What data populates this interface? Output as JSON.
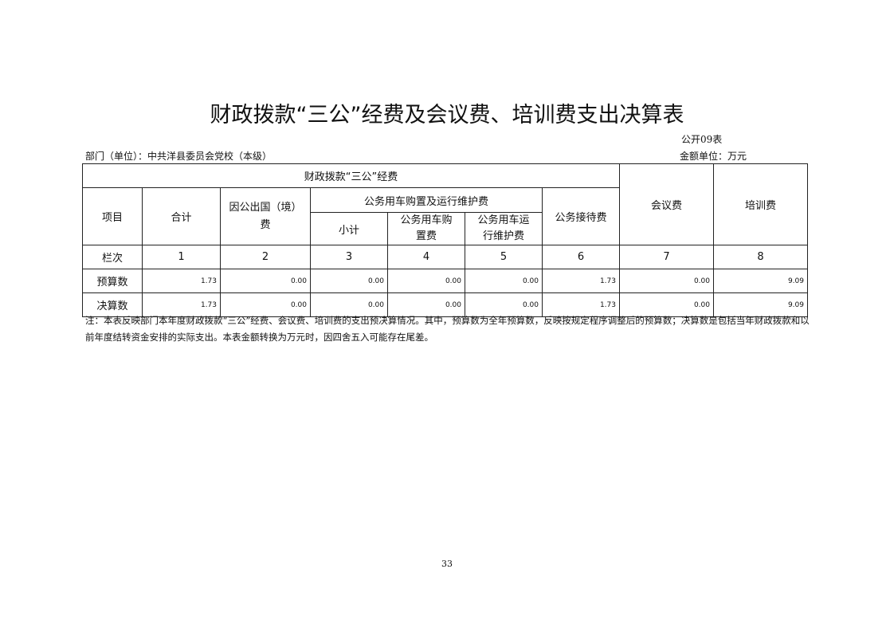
{
  "title": "财政拨款“三公”经费及会议费、培训费支出决算表",
  "form_code": "公开09表",
  "department": "部门（单位）：中共洋县委员会党校（本级）",
  "unit": "金额单位：万元",
  "headers": {
    "group": "财政拨款“三公”经费",
    "item": "项目",
    "total": "合计",
    "abroad": "因公出国（境）费",
    "car_group": "公务用车购置及运行维护费",
    "car_subtotal": "小计",
    "car_purchase": "公务用车购置费",
    "car_operation": "公务用车运行维护费",
    "reception": "公务接待费",
    "meeting": "会议费",
    "training": "培训费"
  },
  "rows": [
    {
      "label": "栏次",
      "values": [
        "1",
        "2",
        "3",
        "4",
        "5",
        "6",
        "7",
        "8"
      ]
    },
    {
      "label": "预算数",
      "values": [
        "1.73",
        "0.00",
        "0.00",
        "0.00",
        "0.00",
        "1.73",
        "0.00",
        "9.09"
      ]
    },
    {
      "label": "决算数",
      "values": [
        "1.73",
        "0.00",
        "0.00",
        "0.00",
        "0.00",
        "1.73",
        "0.00",
        "9.09"
      ]
    }
  ],
  "note": "注：本表反映部门本年度财政拨款“三公”经费、会议费、培训费的支出预决算情况。其中，预算数为全年预算数，反映按规定程序调整后的预算数；决算数是包括当年财政拨款和以前年度结转资金安排的实际支出。本表金额转换为万元时，因四舍五入可能存在尾差。",
  "page_number": "33"
}
